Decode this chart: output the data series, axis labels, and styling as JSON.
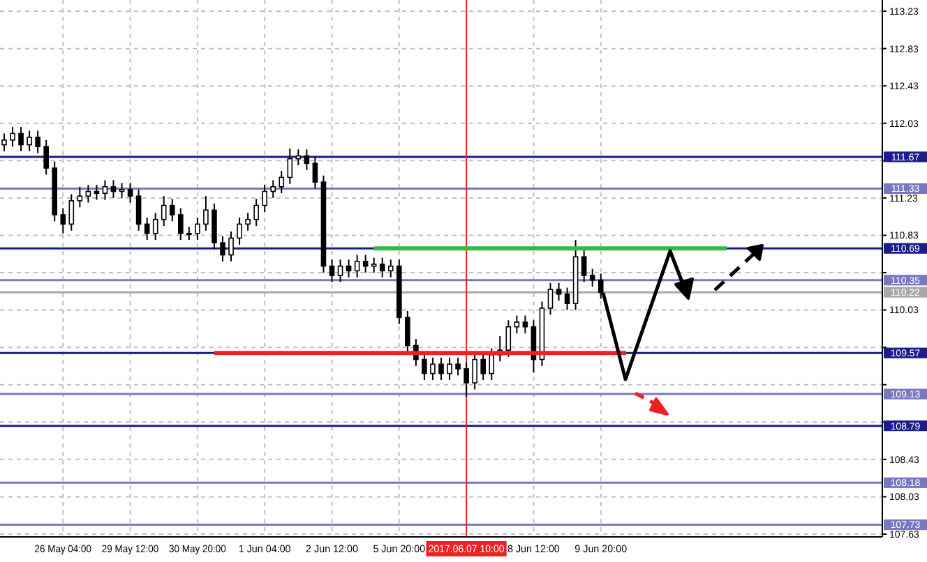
{
  "chart_data": {
    "type": "candlestick",
    "categories": [
      null,
      null,
      null,
      null,
      null,
      null,
      null,
      "26 May 04:00",
      null,
      null,
      null,
      null,
      null,
      null,
      null,
      "29 May 12:00",
      null,
      null,
      null,
      null,
      null,
      null,
      null,
      "30 May 20:00",
      null,
      null,
      null,
      null,
      null,
      null,
      null,
      "1 Jun 04:00",
      null,
      null,
      null,
      null,
      null,
      null,
      null,
      "2 Jun 12:00",
      null,
      null,
      null,
      null,
      null,
      null,
      null,
      "5 Jun 20:00",
      null,
      null,
      null,
      null,
      null,
      null,
      null,
      "2017.06.07 10:00",
      null,
      null,
      null,
      null,
      null,
      null,
      null,
      "8 Jun 12:00",
      null,
      null,
      null,
      null,
      null,
      null,
      null,
      "9 Jun 20:00",
      null,
      null,
      null,
      null,
      null,
      null,
      null,
      null,
      null,
      null,
      null,
      null,
      null,
      null,
      null,
      null,
      null,
      null,
      null,
      null,
      null,
      null,
      null,
      null,
      null,
      null,
      null,
      null,
      null,
      null,
      null,
      null,
      null
    ],
    "color": "#000000",
    "ohlc": [
      [
        111.8,
        111.92,
        111.73,
        111.85
      ],
      [
        111.85,
        111.99,
        111.78,
        111.92
      ],
      [
        111.92,
        111.99,
        111.73,
        111.8
      ],
      [
        111.8,
        111.95,
        111.73,
        111.88
      ],
      [
        111.88,
        111.95,
        111.71,
        111.78
      ],
      [
        111.78,
        111.85,
        111.48,
        111.55
      ],
      [
        111.55,
        111.62,
        110.98,
        111.05
      ],
      [
        111.05,
        111.12,
        110.85,
        110.95
      ],
      [
        110.95,
        111.27,
        110.88,
        111.2
      ],
      [
        111.2,
        111.35,
        111.13,
        111.25
      ],
      [
        111.25,
        111.37,
        111.18,
        111.3
      ],
      [
        111.3,
        111.37,
        111.21,
        111.28
      ],
      [
        111.28,
        111.42,
        111.21,
        111.35
      ],
      [
        111.35,
        111.42,
        111.23,
        111.3
      ],
      [
        111.3,
        111.39,
        111.23,
        111.32
      ],
      [
        111.32,
        111.39,
        111.18,
        111.25
      ],
      [
        111.25,
        111.32,
        110.88,
        110.95
      ],
      [
        110.95,
        111.02,
        110.78,
        110.85
      ],
      [
        110.85,
        111.07,
        110.78,
        111.0
      ],
      [
        111.0,
        111.25,
        110.93,
        111.15
      ],
      [
        111.15,
        111.22,
        110.98,
        111.05
      ],
      [
        111.05,
        111.12,
        110.78,
        110.85
      ],
      [
        110.85,
        110.92,
        110.78,
        110.85
      ],
      [
        110.85,
        111.02,
        110.78,
        110.95
      ],
      [
        110.95,
        111.25,
        110.88,
        111.1
      ],
      [
        111.1,
        111.17,
        110.68,
        110.75
      ],
      [
        110.75,
        110.82,
        110.55,
        110.62
      ],
      [
        110.62,
        110.87,
        110.55,
        110.8
      ],
      [
        110.8,
        111.02,
        110.73,
        110.95
      ],
      [
        110.95,
        111.07,
        110.88,
        111.0
      ],
      [
        111.0,
        111.22,
        110.93,
        111.15
      ],
      [
        111.15,
        111.37,
        111.08,
        111.3
      ],
      [
        111.3,
        111.42,
        111.23,
        111.35
      ],
      [
        111.35,
        111.52,
        111.28,
        111.45
      ],
      [
        111.45,
        111.76,
        111.38,
        111.65
      ],
      [
        111.65,
        111.75,
        111.58,
        111.68
      ],
      [
        111.68,
        111.75,
        111.53,
        111.6
      ],
      [
        111.6,
        111.67,
        111.33,
        111.4
      ],
      [
        111.4,
        111.47,
        110.43,
        110.5
      ],
      [
        110.5,
        110.57,
        110.33,
        110.4
      ],
      [
        110.4,
        110.57,
        110.33,
        110.5
      ],
      [
        110.5,
        110.57,
        110.38,
        110.45
      ],
      [
        110.45,
        110.62,
        110.38,
        110.55
      ],
      [
        110.55,
        110.62,
        110.43,
        110.5
      ],
      [
        110.5,
        110.59,
        110.43,
        110.52
      ],
      [
        110.52,
        110.59,
        110.38,
        110.45
      ],
      [
        110.45,
        110.57,
        110.38,
        110.5
      ],
      [
        110.5,
        110.57,
        109.88,
        109.95
      ],
      [
        109.95,
        110.02,
        109.58,
        109.65
      ],
      [
        109.65,
        109.72,
        109.43,
        109.5
      ],
      [
        109.5,
        109.57,
        109.28,
        109.35
      ],
      [
        109.35,
        109.52,
        109.28,
        109.45
      ],
      [
        109.45,
        109.52,
        109.28,
        109.35
      ],
      [
        109.35,
        109.52,
        109.28,
        109.45
      ],
      [
        109.45,
        109.52,
        109.33,
        109.4
      ],
      [
        109.4,
        109.47,
        109.1,
        109.25
      ],
      [
        109.25,
        109.57,
        109.18,
        109.5
      ],
      [
        109.5,
        109.57,
        109.28,
        109.35
      ],
      [
        109.35,
        109.62,
        109.28,
        109.55
      ],
      [
        109.55,
        109.75,
        109.48,
        109.6
      ],
      [
        109.6,
        109.92,
        109.53,
        109.85
      ],
      [
        109.85,
        109.97,
        109.78,
        109.9
      ],
      [
        109.9,
        109.97,
        109.78,
        109.85
      ],
      [
        109.85,
        109.92,
        109.36,
        109.5
      ],
      [
        109.5,
        110.12,
        109.43,
        110.05
      ],
      [
        110.05,
        110.32,
        109.98,
        110.25
      ],
      [
        110.25,
        110.32,
        110.13,
        110.2
      ],
      [
        110.2,
        110.27,
        110.03,
        110.1
      ],
      [
        110.1,
        110.78,
        110.03,
        110.6
      ],
      [
        110.6,
        110.67,
        110.33,
        110.4
      ],
      [
        110.4,
        110.47,
        110.28,
        110.35
      ],
      [
        110.35,
        110.42,
        110.15,
        110.22
      ],
      null,
      null,
      null,
      null,
      null,
      null,
      null,
      null,
      null,
      null,
      null,
      null,
      null,
      null,
      null,
      null,
      null,
      null,
      null,
      null,
      null,
      null,
      null,
      null,
      null,
      null,
      null,
      null,
      null,
      null,
      null,
      null,
      null
    ],
    "series": [
      {
        "type": "line",
        "color": "#33bb44",
        "values": [
          null,
          null,
          null,
          null,
          null,
          null,
          null,
          null,
          null,
          null,
          null,
          null,
          null,
          null,
          null,
          null,
          null,
          null,
          null,
          null,
          null,
          null,
          null,
          null,
          null,
          null,
          null,
          null,
          null,
          null,
          null,
          null,
          null,
          null,
          null,
          null,
          null,
          null,
          null,
          null,
          null,
          null,
          null,
          null,
          110.69,
          null,
          null,
          null,
          null,
          null,
          null,
          null,
          null,
          null,
          null,
          null,
          null,
          null,
          null,
          null,
          null,
          null,
          null,
          null,
          null,
          null,
          null,
          null,
          null,
          null,
          null,
          null,
          null,
          null,
          null,
          null,
          null,
          null,
          null,
          null,
          null,
          null,
          null,
          null,
          null,
          null,
          110.69,
          null,
          null,
          null,
          null,
          null,
          null,
          null,
          null,
          null,
          null,
          null,
          null,
          null,
          null,
          null,
          null,
          null,
          null
        ]
      },
      {
        "type": "line",
        "color": "#ee2222",
        "values": [
          null,
          null,
          null,
          null,
          null,
          null,
          null,
          null,
          null,
          null,
          null,
          null,
          null,
          null,
          null,
          null,
          null,
          null,
          null,
          null,
          null,
          null,
          null,
          null,
          null,
          109.57,
          null,
          null,
          null,
          null,
          null,
          null,
          null,
          null,
          null,
          null,
          null,
          null,
          null,
          null,
          null,
          null,
          null,
          null,
          null,
          null,
          null,
          null,
          null,
          null,
          null,
          null,
          null,
          null,
          null,
          null,
          null,
          null,
          null,
          null,
          null,
          null,
          null,
          null,
          null,
          null,
          null,
          null,
          null,
          null,
          null,
          null,
          null,
          null,
          109.57,
          null,
          null,
          null,
          null,
          null,
          null,
          null,
          null,
          null,
          null,
          null,
          null,
          null,
          null,
          null,
          null,
          null,
          null,
          null,
          null,
          null,
          null,
          null,
          null,
          null,
          null,
          null,
          null,
          null,
          null
        ]
      }
    ],
    "ylim": [
      107.6,
      113.35
    ],
    "yticks": [
      113.23,
      112.83,
      112.43,
      112.03,
      {
        "value": 111.63,
        "label": null
      },
      111.23,
      110.83,
      {
        "value": 110.43,
        "label": null
      },
      110.03,
      {
        "value": 109.63,
        "label": null
      },
      {
        "value": 109.23,
        "label": null
      },
      {
        "value": 108.83,
        "label": null
      },
      108.43,
      108.03,
      107.63
    ],
    "grid": true,
    "ref_lines": [
      {
        "axis": "y",
        "value": 111.67,
        "label": "111.67",
        "color": "#1c1c8c"
      },
      {
        "axis": "y",
        "value": 111.33,
        "label": "111.33",
        "color": "#7878c0"
      },
      {
        "axis": "y",
        "value": 110.69,
        "label": "110.69",
        "color": "#1c1c8c"
      },
      {
        "axis": "y",
        "value": 110.35,
        "label": "110.35",
        "color": "#7878c0"
      },
      {
        "axis": "y",
        "value": 110.22,
        "label": "110.22",
        "color": "#a8a8a8"
      },
      {
        "axis": "y",
        "value": 109.57,
        "label": "109.57",
        "color": "#1c1c8c"
      },
      {
        "axis": "y",
        "value": 109.13,
        "label": "109.13",
        "color": "#7878c0"
      },
      {
        "axis": "y",
        "value": 108.79,
        "label": "108.79",
        "color": "#1c1c8c"
      },
      {
        "axis": "y",
        "value": 108.18,
        "label": "108.18",
        "color": "#7878c0"
      },
      {
        "axis": "y",
        "value": 107.73,
        "label": "107.73",
        "color": "#7878c0"
      },
      {
        "axis": "x",
        "value": "2017.06.07 10:00",
        "color": "#ee2222"
      }
    ]
  }
}
